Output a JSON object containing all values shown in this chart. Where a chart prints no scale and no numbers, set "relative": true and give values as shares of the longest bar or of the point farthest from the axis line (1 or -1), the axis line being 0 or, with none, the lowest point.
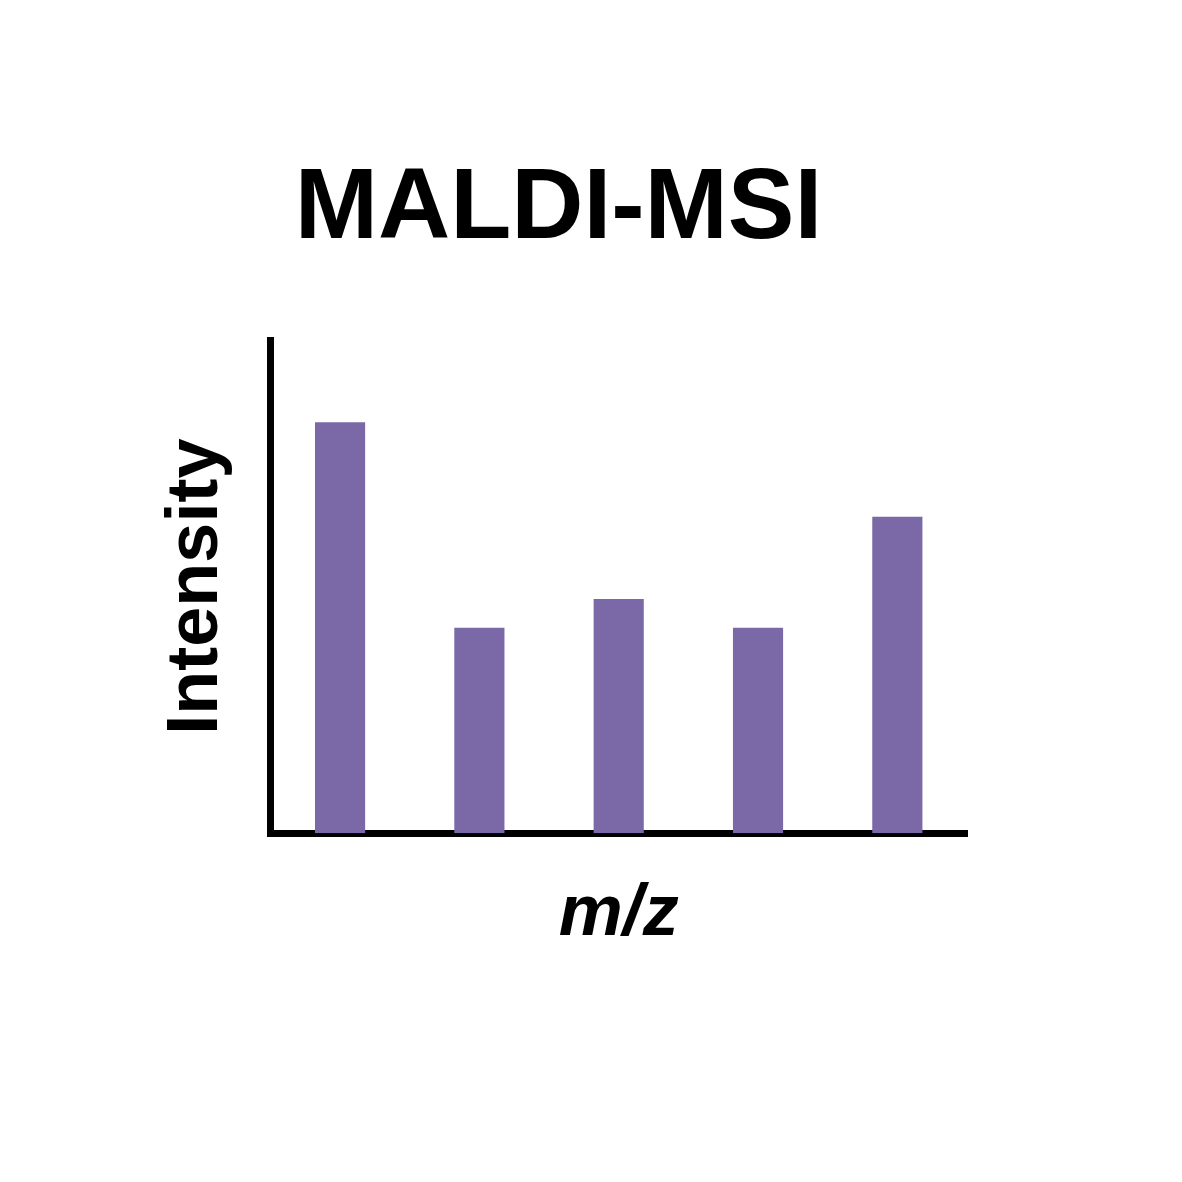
{
  "chart_data": {
    "type": "bar",
    "title": "MALDI-MSI",
    "xlabel": "m/z",
    "ylabel": "Intensity",
    "relative": true,
    "categories": [
      null,
      null,
      null,
      null,
      null
    ],
    "values": [
      1,
      0.5,
      0.57,
      0.5,
      0.77
    ],
    "color": "#7b68a6",
    "grid": false,
    "legend": false
  }
}
